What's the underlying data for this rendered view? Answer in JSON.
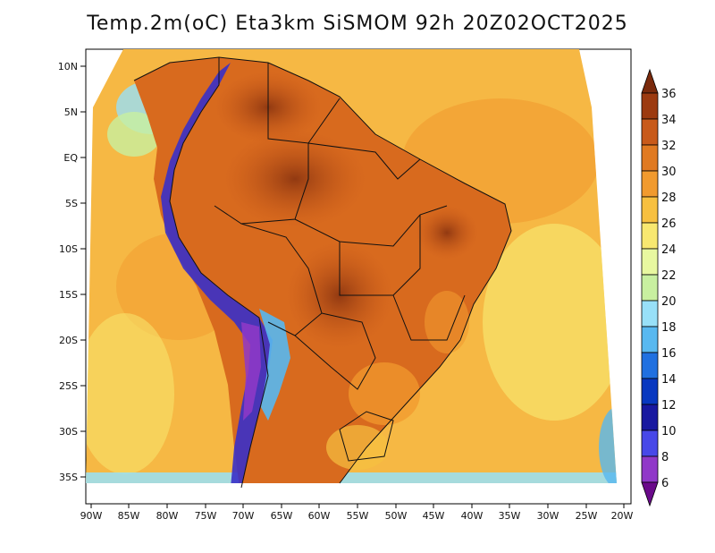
{
  "title": "Temp.2m(oC) Eta3km SiSMOM 92h 20Z02OCT2025",
  "map": {
    "lat_labels": [
      "10N",
      "5N",
      "EQ",
      "5S",
      "10S",
      "15S",
      "20S",
      "25S",
      "30S",
      "35S"
    ],
    "lon_labels": [
      "90W",
      "85W",
      "80W",
      "75W",
      "70W",
      "65W",
      "60W",
      "55W",
      "50W",
      "45W",
      "40W",
      "35W",
      "30W",
      "25W",
      "20W"
    ]
  },
  "colorbar": {
    "labels": [
      "36",
      "34",
      "32",
      "30",
      "28",
      "26",
      "24",
      "22",
      "20",
      "18",
      "16",
      "14",
      "12",
      "10",
      "8",
      "6"
    ],
    "colors": [
      "#7a2a0c",
      "#9c3a10",
      "#c85a1a",
      "#e07a22",
      "#f19a2e",
      "#f7c040",
      "#f8e870",
      "#e8f8a0",
      "#c8f0a0",
      "#98e0f8",
      "#58b8f0",
      "#2070e0",
      "#0838c0",
      "#1818a0",
      "#4848e8",
      "#9038c8",
      "#6a0a8a"
    ]
  },
  "colors": {
    "ocean": "#f8c450",
    "land_hot": "#c8581a",
    "land_hottest": "#8a3410",
    "andes": "#3a30c8",
    "border": "#111111"
  }
}
